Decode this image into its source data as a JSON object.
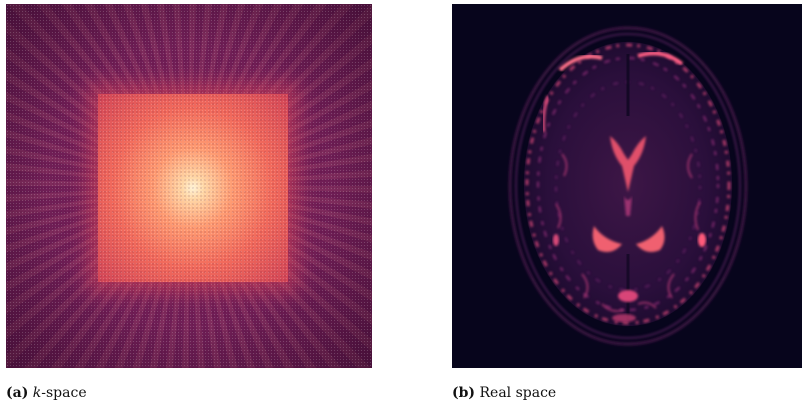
{
  "figure": {
    "panel_a": {
      "label": "(a)",
      "caption_italic": "k",
      "caption_rest": "-space",
      "image": "k-space magnitude spectrum (bright square center, radial streaks, magma colormap)"
    },
    "panel_b": {
      "label": "(b)",
      "caption_rest": "Real space",
      "image": "axial brain MRI slice in magma colormap on dark background"
    },
    "colors": {
      "background_dark": "#07051c",
      "kspace_base": "#6a1d53",
      "kspace_center": "#ffd7a6",
      "tissue_bright": "#f05a7a",
      "tissue_mid": "#7a2a6e"
    }
  }
}
